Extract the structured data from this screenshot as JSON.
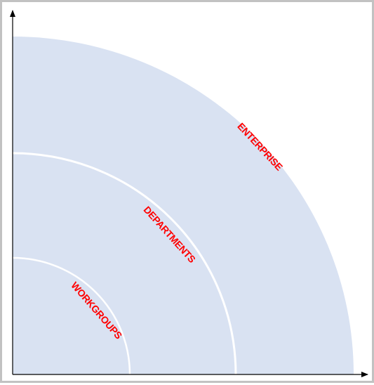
{
  "diagram": {
    "rings": [
      {
        "id": "enterprise",
        "label": "ENTERPRISE"
      },
      {
        "id": "departments",
        "label": "DEPARTMENTS"
      },
      {
        "id": "workgroups",
        "label": "WORKGROUPS"
      }
    ],
    "colors": {
      "fill": "#d9e2f2",
      "separator": "#ffffff",
      "label": "#ff0000",
      "axis": "#000000",
      "border": "#c2c2c2"
    }
  }
}
